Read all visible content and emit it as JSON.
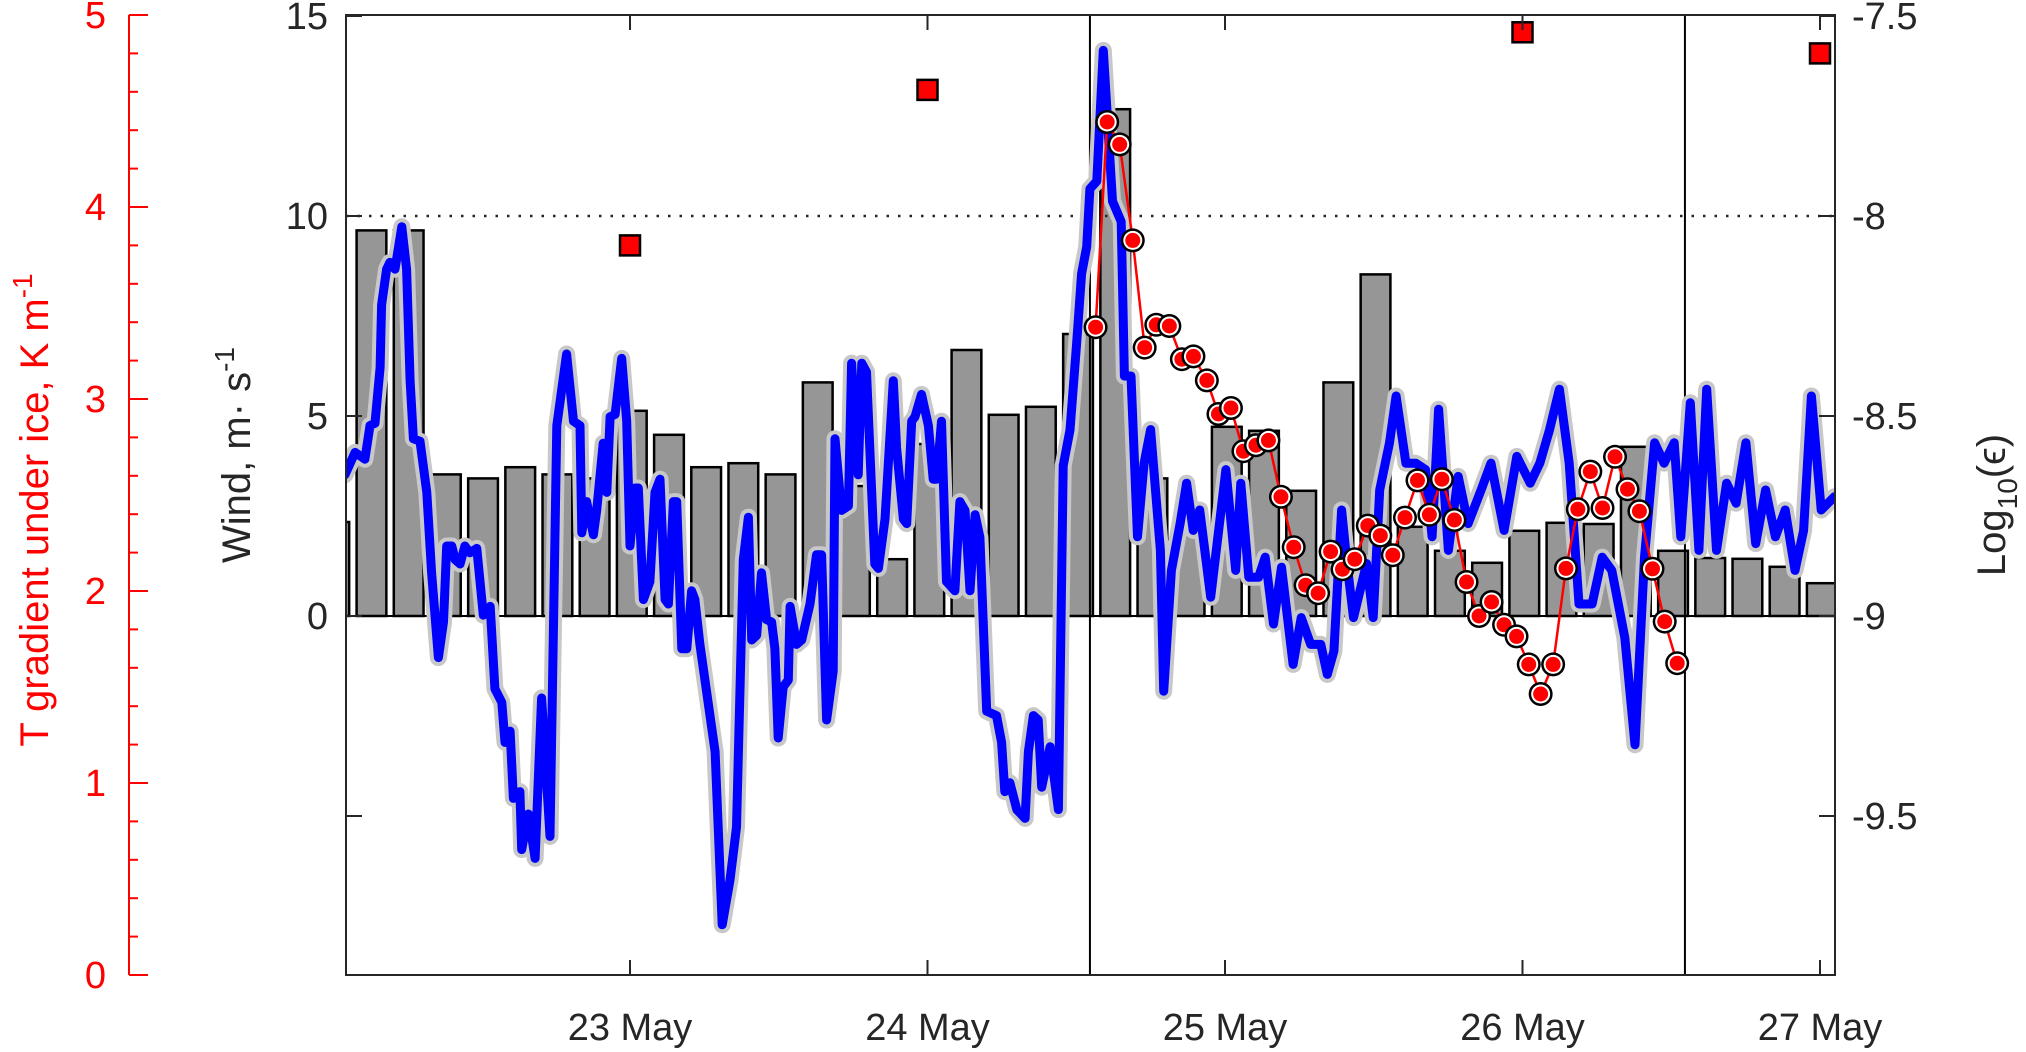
{
  "chart_data": {
    "type": "line",
    "title": "",
    "xlabel": "",
    "x_ticks": [
      {
        "x": 1,
        "label": "23 May"
      },
      {
        "x": 2,
        "label": "24 May"
      },
      {
        "x": 3,
        "label": "25 May"
      },
      {
        "x": 4,
        "label": "26 May"
      },
      {
        "x": 5,
        "label": "27 May"
      }
    ],
    "xlim": [
      0.044,
      5.05
    ],
    "axes": {
      "left_red": {
        "label_main": "T gradient under ice, K m",
        "label_sup": "-1",
        "ylim": [
          0,
          5
        ],
        "ticks": [
          "0",
          "1",
          "2",
          "3",
          "4",
          "5"
        ],
        "color": "#ff0000"
      },
      "left_wind": {
        "label_main": "Wind, m· s",
        "label_sup": "-1",
        "ylim": [
          -9,
          15
        ],
        "ticks": [
          {
            "v": 0,
            "label": "0"
          },
          {
            "v": 5,
            "label": "5"
          },
          {
            "v": 10,
            "label": "10"
          },
          {
            "v": 15,
            "label": "15"
          },
          {
            "v": -5,
            "label": ""
          }
        ]
      },
      "right_eps": {
        "label_main": "Log",
        "label_sub": "10",
        "label_tail": "(ϵ)",
        "ylim": [
          -9.8,
          -7.5
        ],
        "ticks": [
          {
            "v": -7.5,
            "label": "-7.5"
          },
          {
            "v": -8,
            "label": "-8"
          },
          {
            "v": -8.5,
            "label": "-8.5"
          },
          {
            "v": -9,
            "label": "-9"
          },
          {
            "v": -9.5,
            "label": "-9.5"
          }
        ]
      }
    },
    "reference_lines": {
      "dotted_wind": 10,
      "vertical_x": [
        2.546,
        4.546
      ]
    },
    "series": [
      {
        "name": "Wind",
        "axis": "left_wind",
        "type": "line",
        "color": "#0000ff",
        "halo": "#c8c8c8",
        "x": [
          0.042,
          0.076,
          0.109,
          0.126,
          0.143,
          0.16,
          0.165,
          0.182,
          0.193,
          0.21,
          0.233,
          0.249,
          0.261,
          0.272,
          0.294,
          0.317,
          0.333,
          0.356,
          0.373,
          0.384,
          0.401,
          0.412,
          0.429,
          0.445,
          0.462,
          0.485,
          0.507,
          0.53,
          0.546,
          0.569,
          0.58,
          0.597,
          0.608,
          0.63,
          0.636,
          0.658,
          0.681,
          0.703,
          0.731,
          0.754,
          0.787,
          0.81,
          0.832,
          0.838,
          0.854,
          0.877,
          0.888,
          0.91,
          0.922,
          0.933,
          0.95,
          0.972,
          0.989,
          1.0,
          1.017,
          1.028,
          1.045,
          1.067,
          1.084,
          1.101,
          1.118,
          1.129,
          1.146,
          1.157,
          1.174,
          1.191,
          1.207,
          1.218,
          1.235,
          1.286,
          1.31,
          1.336,
          1.358,
          1.381,
          1.398,
          1.409,
          1.426,
          1.442,
          1.459,
          1.476,
          1.487,
          1.498,
          1.515,
          1.532,
          1.538,
          1.56,
          1.577,
          1.605,
          1.627,
          1.644,
          1.661,
          1.683,
          1.689,
          1.711,
          1.734,
          1.745,
          1.767,
          1.779,
          1.795,
          1.823,
          1.835,
          1.857,
          1.885,
          1.896,
          1.919,
          1.93,
          1.947,
          1.958,
          1.98,
          2.003,
          2.019,
          2.031,
          2.047,
          2.064,
          2.092,
          2.109,
          2.126,
          2.143,
          2.16,
          2.176,
          2.199,
          2.232,
          2.249,
          2.26,
          2.277,
          2.3,
          2.328,
          2.339,
          2.356,
          2.372,
          2.384,
          2.412,
          2.44,
          2.456,
          2.479,
          2.501,
          2.518,
          2.535,
          2.546,
          2.569,
          2.591,
          2.622,
          2.651,
          2.662,
          2.684,
          2.706,
          2.728,
          2.75,
          2.783,
          2.794,
          2.82,
          2.849,
          2.871,
          2.893,
          2.915,
          2.952,
          3.003,
          3.036,
          3.053,
          3.08,
          3.113,
          3.135,
          3.163,
          3.19,
          3.229,
          3.256,
          3.288,
          3.322,
          3.344,
          3.366,
          3.392,
          3.41,
          3.432,
          3.476,
          3.498,
          3.52,
          3.553,
          3.575,
          3.608,
          3.641,
          3.674,
          3.696,
          3.718,
          3.751,
          3.784,
          3.817,
          3.861,
          3.894,
          3.938,
          3.981,
          4.026,
          4.058,
          4.091,
          4.124,
          4.157,
          4.19,
          4.234,
          4.268,
          4.3,
          4.344,
          4.378,
          4.41,
          4.444,
          4.476,
          4.51,
          4.532,
          4.564,
          4.593,
          4.619,
          4.652,
          4.686,
          4.718,
          4.751,
          4.784,
          4.817,
          4.85,
          4.883,
          4.916,
          4.945,
          4.971,
          5.004,
          5.048
        ],
        "y": [
          3.53,
          4.09,
          3.92,
          4.76,
          4.82,
          6.21,
          7.78,
          8.67,
          8.84,
          8.67,
          9.73,
          8.67,
          5.88,
          4.43,
          4.37,
          3.09,
          1.08,
          -1.04,
          -0.15,
          1.75,
          1.75,
          1.41,
          1.3,
          1.75,
          1.58,
          1.69,
          0.02,
          0.24,
          -1.82,
          -2.16,
          -3.16,
          -2.88,
          -4.56,
          -4.39,
          -5.84,
          -4.95,
          -6.06,
          -2.05,
          -5.51,
          4.76,
          6.55,
          4.87,
          4.76,
          2.08,
          2.86,
          2.03,
          2.64,
          4.32,
          3.09,
          4.98,
          5.04,
          6.44,
          4.87,
          1.75,
          3.2,
          3.2,
          0.41,
          0.86,
          3.09,
          3.42,
          0.41,
          0.3,
          2.86,
          2.86,
          -0.82,
          -0.82,
          0.63,
          0.41,
          -0.71,
          -3.39,
          -7.72,
          -6.6,
          -5.28,
          1.41,
          2.47,
          -0.6,
          -0.48,
          1.08,
          -0.09,
          -0.15,
          -0.82,
          -3.05,
          -1.77,
          -1.6,
          0.24,
          -0.71,
          -0.6,
          0.3,
          1.53,
          1.53,
          -2.6,
          -1.38,
          4.43,
          2.64,
          2.75,
          6.32,
          3.53,
          6.32,
          6.1,
          1.3,
          1.19,
          2.42,
          5.88,
          4.2,
          2.42,
          2.31,
          4.87,
          4.98,
          5.54,
          4.76,
          3.42,
          3.42,
          4.87,
          0.86,
          0.63,
          2.86,
          2.64,
          0.63,
          2.53,
          1.97,
          -2.38,
          -2.49,
          -3.16,
          -4.39,
          -4.17,
          -4.84,
          -5.06,
          -3.39,
          -2.49,
          -2.6,
          -4.28,
          -3.27,
          -4.84,
          3.76,
          4.65,
          6.77,
          8.56,
          9.23,
          10.68,
          10.87,
          14.14,
          10.37,
          9.86,
          6.0,
          6.0,
          1.98,
          3.82,
          4.66,
          1.64,
          -1.88,
          1.14,
          2.31,
          3.32,
          2.14,
          2.65,
          0.47,
          3.66,
          1.14,
          3.32,
          0.97,
          0.97,
          1.47,
          -0.2,
          1.22,
          -1.21,
          -0.04,
          -0.71,
          -0.71,
          -1.46,
          -0.88,
          2.65,
          1.31,
          -0.04,
          1.31,
          -0.04,
          3.15,
          4.33,
          5.5,
          3.82,
          3.82,
          3.66,
          1.98,
          5.17,
          1.64,
          3.49,
          2.31,
          3.15,
          3.82,
          2.14,
          3.99,
          3.32,
          3.82,
          4.66,
          5.67,
          3.82,
          0.3,
          0.3,
          1.47,
          1.14,
          -0.54,
          -3.22,
          1.47,
          4.33,
          3.82,
          4.33,
          1.98,
          5.33,
          1.64,
          5.67,
          1.64,
          3.32,
          2.82,
          4.33,
          1.81,
          3.15,
          1.98,
          2.65,
          1.14,
          2.14,
          5.5,
          2.65,
          2.98
        ]
      },
      {
        "name": "Log10 epsilon profile",
        "axis": "right_eps",
        "type": "line+marker",
        "color": "#ff0000",
        "x": [
          2.565,
          2.604,
          2.646,
          2.69,
          2.73,
          2.769,
          2.813,
          2.855,
          2.894,
          2.939,
          2.978,
          3.02,
          3.062,
          3.104,
          3.146,
          3.188,
          3.231,
          3.271,
          3.313,
          3.355,
          3.395,
          3.436,
          3.48,
          3.522,
          3.564,
          3.605,
          3.647,
          3.687,
          3.729,
          3.771,
          3.812,
          3.854,
          3.896,
          3.938,
          3.98,
          4.021,
          4.061,
          4.103,
          4.146,
          4.186,
          4.228,
          4.269,
          4.311,
          4.353,
          4.393,
          4.437,
          4.478,
          4.52
        ],
        "y": [
          -8.278,
          -7.765,
          -7.821,
          -8.061,
          -8.329,
          -8.272,
          -8.275,
          -8.358,
          -8.351,
          -8.411,
          -8.495,
          -8.48,
          -8.588,
          -8.573,
          -8.561,
          -8.702,
          -8.828,
          -8.923,
          -8.943,
          -8.839,
          -8.883,
          -8.858,
          -8.774,
          -8.799,
          -8.848,
          -8.754,
          -8.661,
          -8.747,
          -8.658,
          -8.76,
          -8.915,
          -9.0,
          -8.965,
          -9.022,
          -9.051,
          -9.121,
          -9.195,
          -9.121,
          -8.881,
          -8.733,
          -8.639,
          -8.73,
          -8.602,
          -8.683,
          -8.738,
          -8.882,
          -9.014,
          -9.118
        ]
      },
      {
        "name": "3-hourly bars",
        "axis": "right_eps",
        "type": "bar",
        "color": "#969696",
        "baseline": -9,
        "bar_width_days": 0.1,
        "x": [
          0.006,
          0.131,
          0.256,
          0.381,
          0.506,
          0.631,
          0.756,
          0.881,
          1.006,
          1.131,
          1.256,
          1.381,
          1.506,
          1.631,
          1.756,
          1.881,
          2.006,
          2.131,
          2.256,
          2.381,
          2.506,
          2.631,
          2.756,
          2.881,
          3.006,
          3.131,
          3.256,
          3.381,
          3.506,
          3.631,
          3.756,
          3.881,
          4.006,
          4.131,
          4.256,
          4.381,
          4.506,
          4.631,
          4.756,
          4.881,
          5.006
        ],
        "y": [
          -8.765,
          -8.036,
          -8.036,
          -8.646,
          -8.656,
          -8.628,
          -8.646,
          -8.656,
          -8.487,
          -8.547,
          -8.628,
          -8.618,
          -8.646,
          -8.416,
          -8.675,
          -8.858,
          -8.57,
          -8.335,
          -8.497,
          -8.477,
          -8.295,
          -7.733,
          -8.656,
          -8.78,
          -8.527,
          -8.537,
          -8.687,
          -8.416,
          -8.146,
          -8.777,
          -8.837,
          -8.867,
          -8.787,
          -8.767,
          -8.77,
          -8.577,
          -8.837,
          -8.855,
          -8.857,
          -8.877,
          -8.918
        ]
      },
      {
        "name": "T gradient under ice",
        "axis": "left_red",
        "type": "scatter",
        "marker": "square",
        "color": "#ff0000",
        "x": [
          1.0,
          2.0,
          4.0,
          5.0
        ],
        "y": [
          3.8,
          4.61,
          4.91,
          4.8
        ]
      }
    ],
    "grid": false,
    "legend": "none"
  }
}
